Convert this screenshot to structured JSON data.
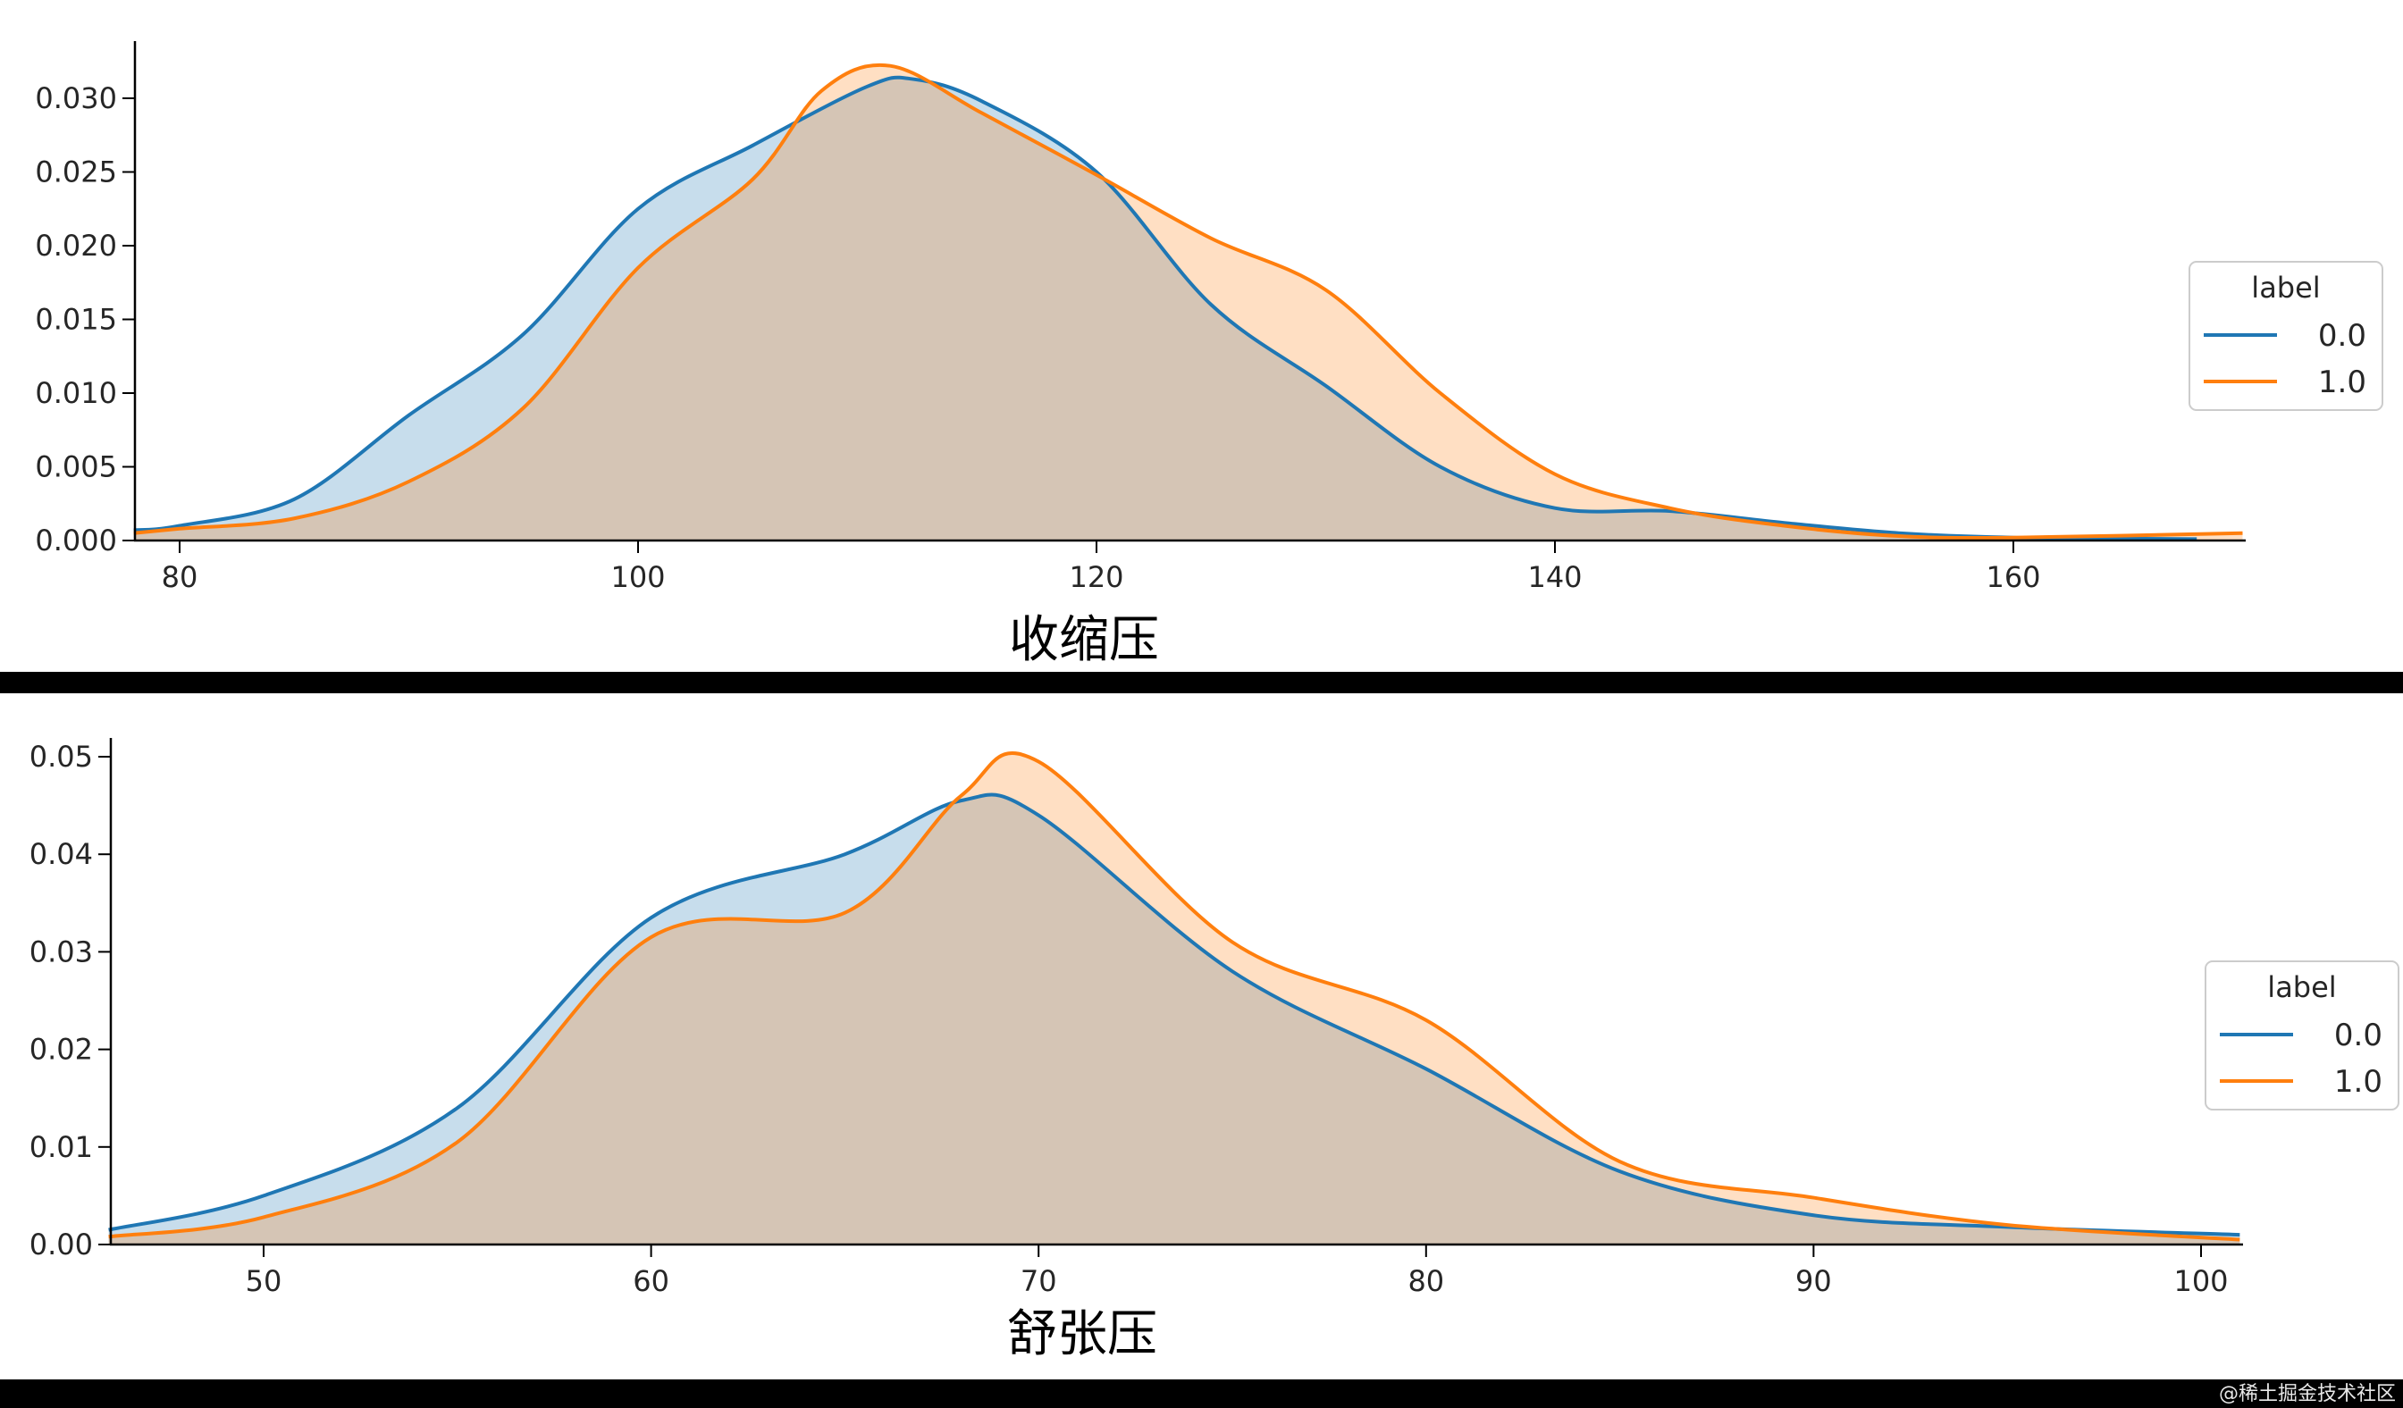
{
  "chart_data": [
    {
      "type": "area",
      "subtype": "kde",
      "xlabel": "收缩压",
      "ylabel": "",
      "xlim": [
        78,
        170
      ],
      "ylim": [
        0,
        0.034
      ],
      "xticks": [
        80,
        100,
        120,
        140,
        160
      ],
      "yticks": [
        0.0,
        0.005,
        0.01,
        0.015,
        0.02,
        0.025,
        0.03
      ],
      "ytick_labels": [
        "0.000",
        "0.005",
        "0.010",
        "0.015",
        "0.020",
        "0.025",
        "0.030"
      ],
      "grid": false,
      "legend": {
        "title": "label",
        "position": "right",
        "entries": [
          "0.0",
          "1.0"
        ]
      },
      "series": [
        {
          "name": "0.0",
          "color": "#1f77b4",
          "fill": "#c6dbed",
          "x": [
            78,
            80,
            85,
            90,
            95,
            100,
            105,
            110,
            112,
            115,
            120,
            125,
            130,
            135,
            140,
            145,
            150,
            155,
            160,
            168
          ],
          "values": [
            0.0007,
            0.001,
            0.0028,
            0.0085,
            0.014,
            0.0225,
            0.0268,
            0.0308,
            0.0313,
            0.0298,
            0.025,
            0.016,
            0.0105,
            0.005,
            0.0022,
            0.002,
            0.0012,
            0.0005,
            0.0002,
            0.0001
          ]
        },
        {
          "name": "1.0",
          "color": "#ff7f0e",
          "fill": "#ffd9b8",
          "x": [
            78,
            80,
            85,
            90,
            95,
            100,
            105,
            108,
            111,
            115,
            120,
            125,
            130,
            135,
            140,
            145,
            150,
            155,
            160,
            170
          ],
          "values": [
            0.0005,
            0.0008,
            0.0015,
            0.004,
            0.009,
            0.0185,
            0.0245,
            0.0305,
            0.0322,
            0.029,
            0.0248,
            0.0205,
            0.017,
            0.01,
            0.0045,
            0.0022,
            0.001,
            0.0003,
            0.0002,
            0.0005
          ]
        }
      ]
    },
    {
      "type": "area",
      "subtype": "kde",
      "xlabel": "舒张压",
      "ylabel": "",
      "xlim": [
        46,
        101
      ],
      "ylim": [
        0,
        0.052
      ],
      "xticks": [
        50,
        60,
        70,
        80,
        90,
        100
      ],
      "yticks": [
        0.0,
        0.01,
        0.02,
        0.03,
        0.04,
        0.05
      ],
      "ytick_labels": [
        "0.00",
        "0.01",
        "0.02",
        "0.03",
        "0.04",
        "0.05"
      ],
      "grid": false,
      "legend": {
        "title": "label",
        "position": "right",
        "entries": [
          "0.0",
          "1.0"
        ]
      },
      "series": [
        {
          "name": "0.0",
          "color": "#1f77b4",
          "fill": "#c6dbed",
          "x": [
            46,
            50,
            55,
            60,
            65,
            68,
            70,
            75,
            80,
            85,
            90,
            95,
            101
          ],
          "values": [
            0.0015,
            0.005,
            0.014,
            0.0335,
            0.04,
            0.0455,
            0.044,
            0.028,
            0.018,
            0.0075,
            0.003,
            0.0018,
            0.001
          ]
        },
        {
          "name": "1.0",
          "color": "#ff7f0e",
          "fill": "#ffd9b8",
          "x": [
            46,
            50,
            55,
            60,
            65,
            68,
            70,
            75,
            80,
            85,
            90,
            95,
            101
          ],
          "values": [
            0.0008,
            0.0028,
            0.0105,
            0.0315,
            0.034,
            0.046,
            0.0495,
            0.031,
            0.023,
            0.0085,
            0.0048,
            0.002,
            0.0005
          ]
        }
      ]
    }
  ],
  "overlap_color": "#d4c4b4",
  "watermark": "@稀土掘金技术社区"
}
